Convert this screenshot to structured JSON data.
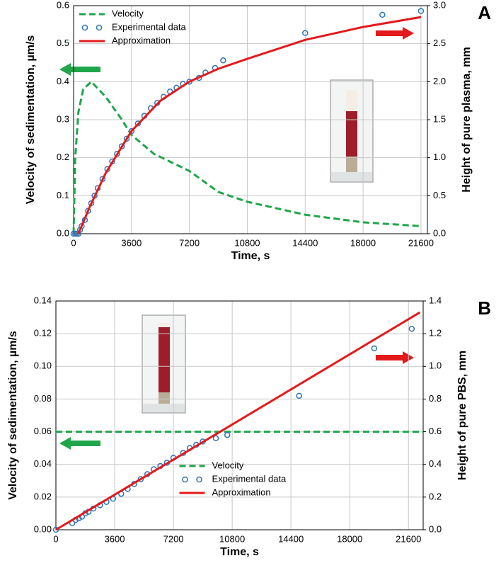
{
  "chart_data": [
    {
      "type": "line",
      "panel_label": "A",
      "x_label": "Time, s",
      "y_label": "Velocity of sedimentation, µm/s",
      "y2_label": "Height of pure  plasma, mm",
      "xlim": [
        0,
        22000
      ],
      "xticks": [
        0,
        3600,
        7200,
        10800,
        14400,
        18000,
        21600
      ],
      "ylim": [
        0,
        0.6
      ],
      "yticks": [
        {
          "value": 0,
          "label": "0.0"
        },
        0.1,
        0.2,
        0.3,
        0.4,
        0.5,
        0.6
      ],
      "y2lim": [
        0,
        3.0
      ],
      "y2ticks": [
        {
          "value": 0,
          "label": "0.0"
        },
        0.5,
        {
          "value": 1,
          "label": "1.0"
        },
        1.5,
        {
          "value": 2,
          "label": "2.0"
        },
        2.5,
        {
          "value": 3,
          "label": "3.0"
        }
      ],
      "grid": true,
      "legend": "upper left",
      "series": [
        {
          "name": "Velocity",
          "color": "#1fa64a",
          "style": "dashed",
          "x": [
            0,
            100,
            300,
            600,
            1100,
            2000,
            3000,
            3600,
            5000,
            7200,
            9000,
            10800,
            14400,
            18000,
            21600
          ],
          "values": [
            0,
            0.2,
            0.32,
            0.38,
            0.4,
            0.36,
            0.3,
            0.26,
            0.21,
            0.165,
            0.11,
            0.084,
            0.05,
            0.03,
            0.02
          ]
        },
        {
          "name": "Experimental data",
          "color": "#2e75b6",
          "style": "markers",
          "axis": "y2",
          "x": [
            0,
            100,
            200,
            300,
            400,
            500,
            700,
            900,
            1100,
            1300,
            1500,
            1800,
            2100,
            2400,
            2700,
            3000,
            3300,
            3600,
            4000,
            4400,
            4800,
            5200,
            5600,
            6000,
            6400,
            6800,
            7200,
            7800,
            8200,
            8800,
            9300,
            14400,
            19200,
            21600
          ],
          "values": [
            0,
            0,
            0,
            0,
            0.05,
            0.1,
            0.18,
            0.3,
            0.4,
            0.5,
            0.6,
            0.72,
            0.85,
            0.95,
            1.05,
            1.15,
            1.25,
            1.35,
            1.45,
            1.55,
            1.65,
            1.72,
            1.8,
            1.87,
            1.92,
            1.97,
            2.0,
            2.05,
            2.12,
            2.18,
            2.28,
            2.64,
            2.88,
            2.93
          ]
        },
        {
          "name": "Approximation",
          "color": "#e31a1c",
          "style": "solid",
          "axis": "y2",
          "x": [
            300,
            1000,
            2000,
            3600,
            5400,
            7200,
            9000,
            10800,
            14400,
            18000,
            21600
          ],
          "values": [
            0,
            0.35,
            0.8,
            1.35,
            1.75,
            2.0,
            2.17,
            2.3,
            2.55,
            2.72,
            2.85
          ]
        }
      ]
    },
    {
      "type": "line",
      "panel_label": "B",
      "x_label": "Time, s",
      "y_label": "Velocity of sedimentation, µm/s",
      "y2_label": "Height of pure PBS, mm",
      "xlim": [
        0,
        22500
      ],
      "xticks": [
        0,
        3600,
        7200,
        10800,
        14400,
        18000,
        21600
      ],
      "ylim": [
        0,
        0.14
      ],
      "yticks": [
        {
          "value": 0,
          "label": "0.00"
        },
        0.02,
        0.04,
        0.06,
        0.08,
        {
          "value": 0.1,
          "label": "0.10"
        },
        0.12,
        0.14
      ],
      "y2lim": [
        0,
        1.4
      ],
      "y2ticks": [
        {
          "value": 0,
          "label": "0.0"
        },
        0.2,
        0.4,
        0.6,
        0.8,
        {
          "value": 1,
          "label": "1.0"
        },
        1.2,
        1.4
      ],
      "grid": true,
      "legend": "lower center",
      "series": [
        {
          "name": "Velocity",
          "color": "#1fa64a",
          "style": "dashed",
          "x": [
            0,
            22500
          ],
          "values": [
            0.06,
            0.06
          ]
        },
        {
          "name": "Experimental data",
          "color": "#2e75b6",
          "style": "markers",
          "axis": "y2",
          "x": [
            0,
            1000,
            1200,
            1400,
            1600,
            1800,
            2000,
            2300,
            2700,
            3100,
            3500,
            4000,
            4400,
            4800,
            5200,
            5600,
            6000,
            6400,
            6800,
            7200,
            7800,
            8200,
            8600,
            9000,
            9800,
            10500,
            14900,
            19500,
            21800
          ],
          "values": [
            0,
            0.04,
            0.06,
            0.07,
            0.08,
            0.1,
            0.11,
            0.13,
            0.15,
            0.17,
            0.19,
            0.22,
            0.25,
            0.28,
            0.31,
            0.34,
            0.37,
            0.39,
            0.41,
            0.44,
            0.47,
            0.5,
            0.52,
            0.54,
            0.56,
            0.58,
            0.82,
            1.11,
            1.23
          ]
        },
        {
          "name": "Approximation",
          "color": "#e31a1c",
          "style": "solid",
          "axis": "y2",
          "x": [
            0,
            22300
          ],
          "values": [
            0,
            1.33
          ]
        }
      ]
    }
  ]
}
